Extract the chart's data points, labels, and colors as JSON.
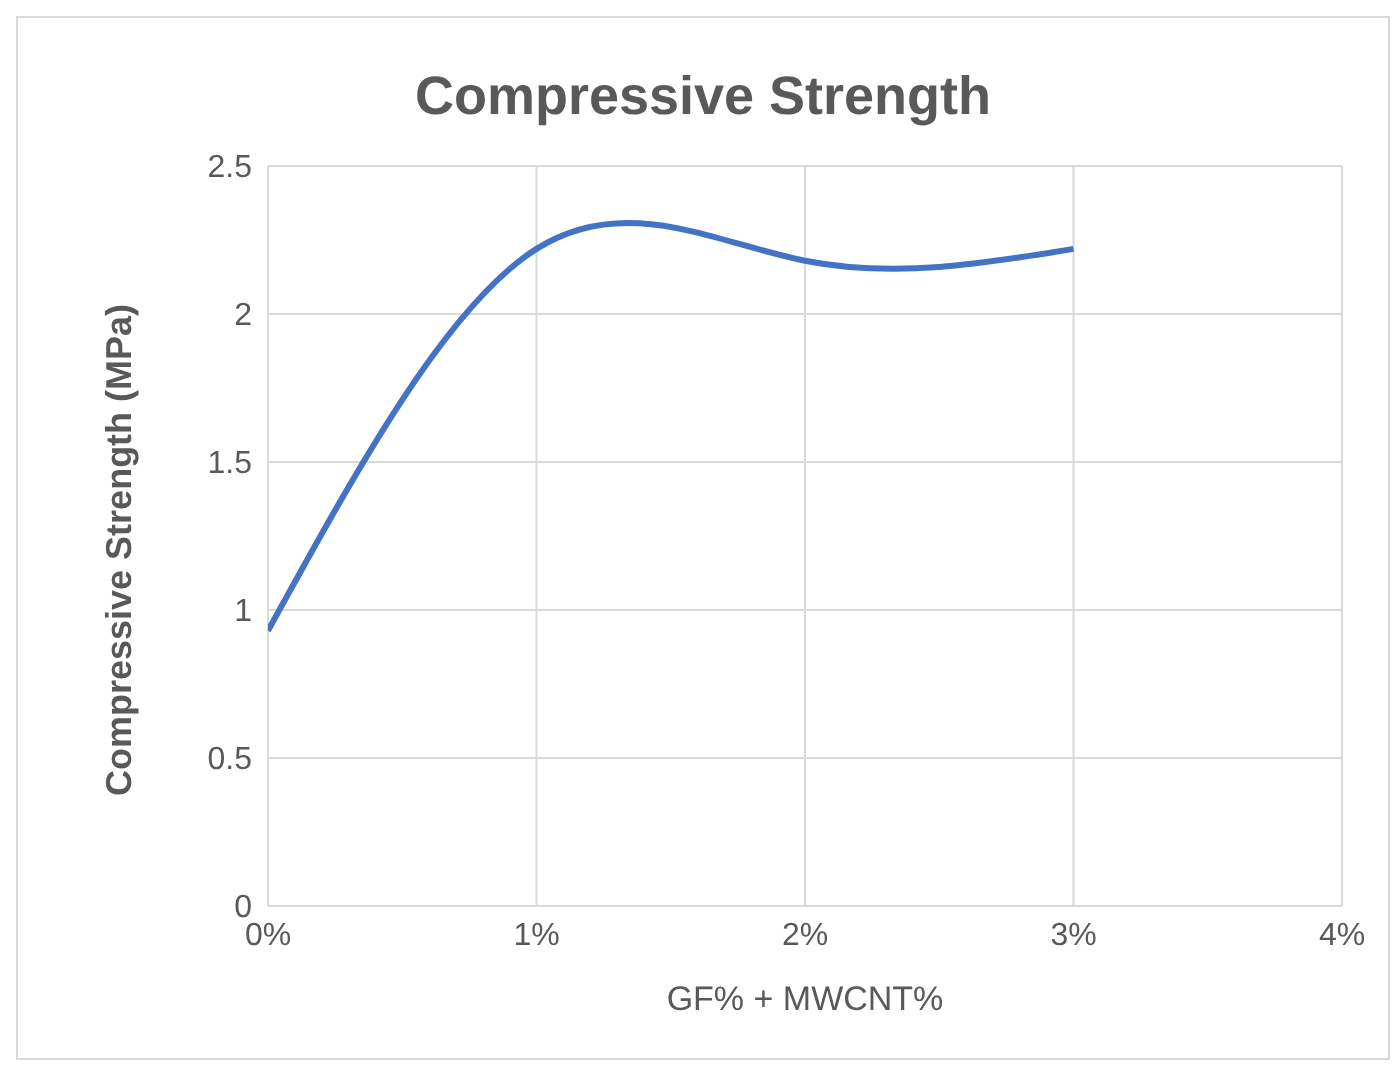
{
  "chart_data": {
    "type": "line",
    "title": "Compressive Strength",
    "xlabel": "GF% + MWCNT%",
    "ylabel": "Compressive Strength (MPa)",
    "x": [
      0,
      1,
      2,
      3
    ],
    "series": [
      {
        "color": "#4472c4",
        "values": [
          0.93,
          2.22,
          2.18,
          2.22
        ]
      }
    ],
    "xlim": [
      0,
      4
    ],
    "xticks": [
      {
        "value": 0,
        "label": "0%"
      },
      {
        "value": 1,
        "label": "1%"
      },
      {
        "value": 2,
        "label": "2%"
      },
      {
        "value": 3,
        "label": "3%"
      },
      {
        "value": 4,
        "label": "4%"
      }
    ],
    "ylim": [
      0,
      2.5
    ],
    "yticks": [
      0,
      0.5,
      1,
      1.5,
      2,
      2.5
    ],
    "grid": true,
    "legend": false,
    "marker": "none",
    "line_style": "solid"
  }
}
